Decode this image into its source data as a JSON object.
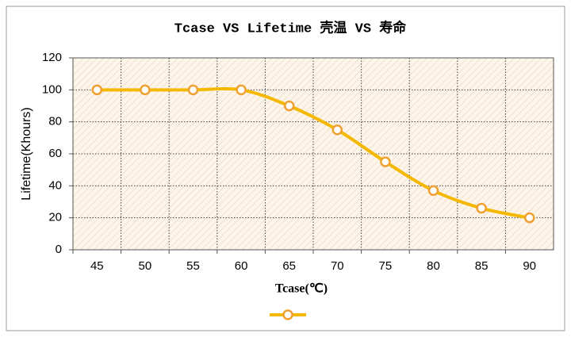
{
  "chart_data": {
    "type": "line",
    "title": "Tcase VS Lifetime 壳温 VS 寿命",
    "x_label": "Tcase(℃)",
    "y_label": "Lifetime(Khours)",
    "categories": [
      "45",
      "50",
      "55",
      "60",
      "65",
      "70",
      "75",
      "80",
      "85",
      "90"
    ],
    "series": [
      {
        "color": "#f5b800",
        "marker_color": "#f0a030",
        "values": [
          100,
          100,
          100,
          100,
          90,
          75,
          55,
          37,
          26,
          20
        ]
      }
    ],
    "ylim": [
      0,
      120
    ],
    "yticks": [
      0,
      20,
      40,
      60,
      80,
      100,
      120
    ],
    "grid": true,
    "smooth": true,
    "legend": "bottom"
  }
}
